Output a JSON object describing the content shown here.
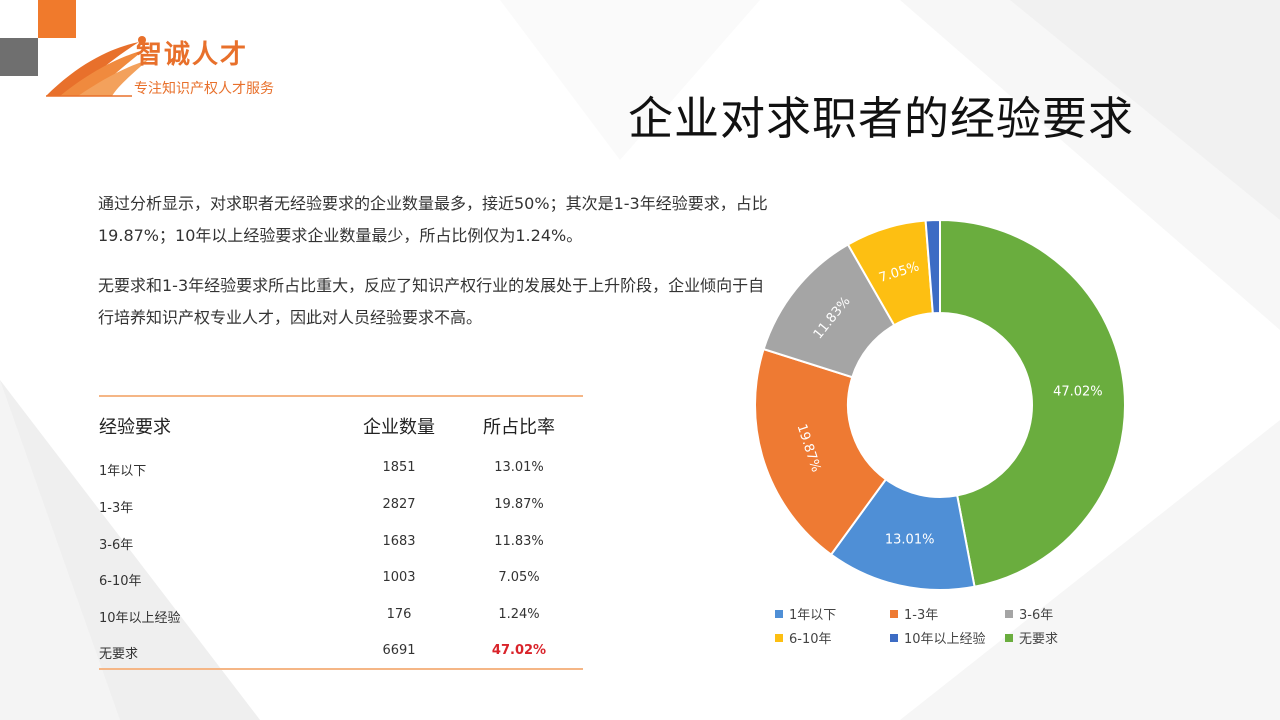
{
  "logo": {
    "name": "智诚人才",
    "slogan": "专注知识产权人才服务"
  },
  "title": "企业对求职者的经验要求",
  "paragraphs": [
    "通过分析显示，对求职者无经验要求的企业数量最多，接近50%；其次是1-3年经验要求，占比19.87%；10年以上经验要求企业数量最少，所占比例仅为1.24%。",
    "无要求和1-3年经验要求所占比重大，反应了知识产权行业的发展处于上升阶段，企业倾向于自行培养知识产权专业人才，因此对人员经验要求不高。"
  ],
  "table": {
    "headers": [
      "经验要求",
      "企业数量",
      "所占比率"
    ],
    "rows": [
      {
        "label": "1年以下",
        "count": "1851",
        "ratio": "13.01%"
      },
      {
        "label": "1-3年",
        "count": "2827",
        "ratio": "19.87%"
      },
      {
        "label": "3-6年",
        "count": "1683",
        "ratio": "11.83%"
      },
      {
        "label": "6-10年",
        "count": "1003",
        "ratio": "7.05%"
      },
      {
        "label": "10年以上经验",
        "count": "176",
        "ratio": "1.24%"
      },
      {
        "label": "无要求",
        "count": "6691",
        "ratio": "47.02%",
        "highlight": true
      }
    ]
  },
  "chart_data": {
    "type": "pie",
    "donut": true,
    "title": "",
    "legend_position": "bottom",
    "series": [
      {
        "name": "1年以下",
        "value": 13.01,
        "label": "13.01%",
        "color": "#4f8fd6"
      },
      {
        "name": "1-3年",
        "value": 19.87,
        "label": "19.87%",
        "color": "#ee7a33"
      },
      {
        "name": "3-6年",
        "value": 11.83,
        "label": "11.83%",
        "color": "#a5a5a5"
      },
      {
        "name": "6-10年",
        "value": 7.05,
        "label": "7.05%",
        "color": "#fdbf12"
      },
      {
        "name": "10年以上经验",
        "value": 1.24,
        "label": "1.24%",
        "color": "#3d6cc4"
      },
      {
        "name": "无要求",
        "value": 47.02,
        "label": "47.02%",
        "color": "#6aad3e"
      }
    ],
    "start_series": "无要求",
    "direction": "clockwise",
    "show_label_for": [
      "1年以下",
      "1-3年",
      "3-6年",
      "6-10年",
      "无要求"
    ]
  }
}
